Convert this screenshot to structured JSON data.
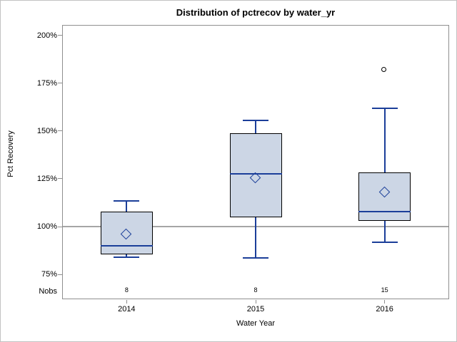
{
  "chart_data": {
    "type": "box",
    "title": "Distribution of pctrecov by water_yr",
    "xlabel": "Water Year",
    "ylabel": "Pct Recovery",
    "nobs_label": "Nobs",
    "categories": [
      "2014",
      "2015",
      "2016"
    ],
    "nobs": [
      "8",
      "8",
      "15"
    ],
    "y_ticks": [
      200,
      175,
      150,
      125,
      100,
      75
    ],
    "y_tick_suffix": "%",
    "ylim": [
      62,
      205.5
    ],
    "reference_line": 100,
    "grid": false,
    "legend": "none",
    "series": [
      {
        "category": "2014",
        "min": 84,
        "q1": 85.5,
        "median": 90,
        "mean": 96,
        "q3": 108,
        "max": 113.5,
        "outliers": []
      },
      {
        "category": "2015",
        "min": 83.5,
        "q1": 105,
        "median": 127.5,
        "mean": 125.5,
        "q3": 149,
        "max": 155.5,
        "outliers": []
      },
      {
        "category": "2016",
        "min": 92,
        "q1": 103,
        "median": 108,
        "mean": 118,
        "q3": 128.5,
        "max": 162,
        "outliers": [
          182
        ]
      }
    ],
    "colors": {
      "box_fill": "#ccd6e5",
      "box_border": "#000000",
      "line": "#1b3e99",
      "reference_line": "#a6a6a6",
      "frame": "#8f8f8f",
      "outlier": "#000000",
      "text": "#000000"
    }
  }
}
